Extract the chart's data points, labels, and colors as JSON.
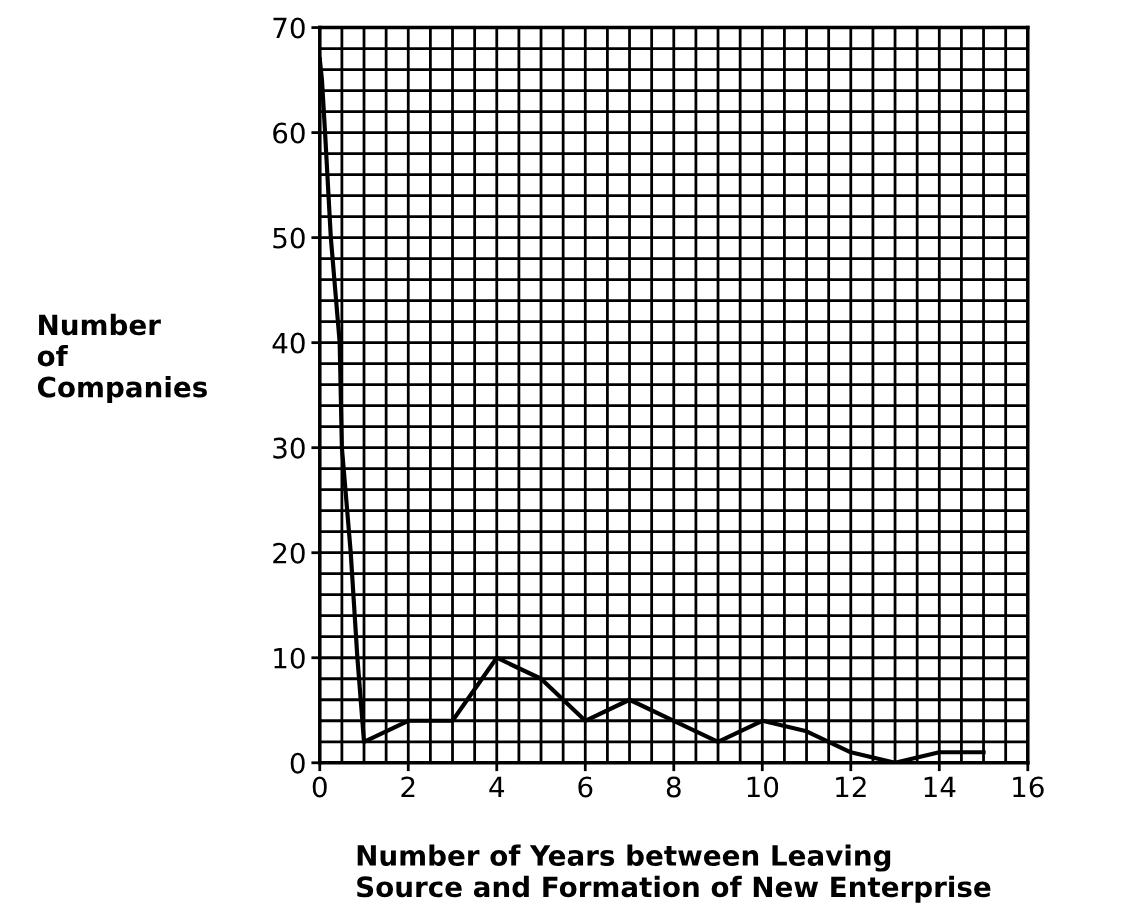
{
  "chart_data": {
    "type": "line",
    "xlabel": "Number of Years between Leaving\nSource and Formation of New Enterprise",
    "ylabel": "Number\nof\nCompanies",
    "x": [
      0,
      0.05,
      0.12,
      0.25,
      0.45,
      0.5,
      0.7,
      0.85,
      1,
      2,
      3,
      4,
      5,
      6,
      7,
      8,
      9,
      10,
      11,
      12,
      13,
      14,
      15
    ],
    "values": [
      67,
      65,
      60,
      50,
      40,
      30,
      20,
      10,
      2,
      4,
      4,
      10,
      8,
      4,
      6,
      4,
      2,
      4,
      3,
      1,
      0,
      1,
      1
    ],
    "color": "#000000",
    "xlim": [
      0,
      16
    ],
    "ylim": [
      0,
      70
    ],
    "xticks": [
      0,
      2,
      4,
      6,
      8,
      10,
      12,
      14,
      16
    ],
    "yticks": [
      0,
      10,
      20,
      30,
      40,
      50,
      60,
      70
    ],
    "grid": true,
    "marker": "none",
    "line_style": "solid"
  }
}
